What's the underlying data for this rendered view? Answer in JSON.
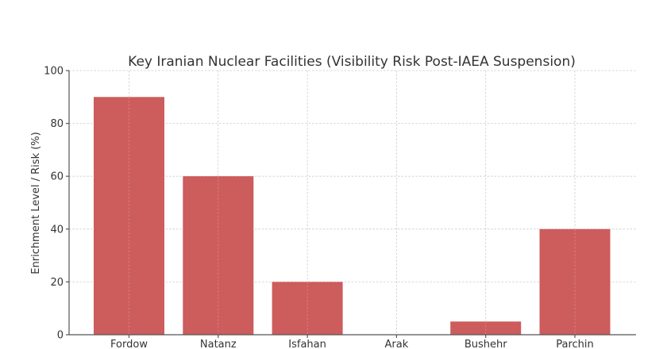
{
  "chart_data": {
    "type": "bar",
    "title": "Key Iranian Nuclear Facilities (Visibility Risk Post-IAEA Suspension)",
    "xlabel": "",
    "ylabel": "Enrichment Level / Risk (%)",
    "categories": [
      "Fordow",
      "Natanz",
      "Isfahan",
      "Arak",
      "Bushehr",
      "Parchin"
    ],
    "values": [
      90,
      60,
      20,
      0,
      5,
      40
    ],
    "ylim": [
      0,
      100
    ],
    "yticks": [
      0,
      20,
      40,
      60,
      80,
      100
    ],
    "grid": true,
    "legend": null,
    "bar_color": "#cd5c5c"
  }
}
